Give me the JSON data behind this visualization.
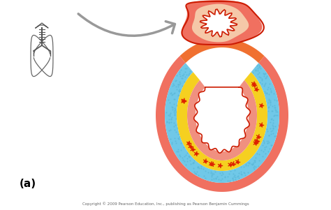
{
  "bg_color": "#ffffff",
  "label_a": "(a)",
  "copyright": "Copyright © 2009 Pearson Education, Inc., publishing as Pearson Benjamin Cummings",
  "arrow_color": "#999999",
  "outer_pink": "#f07060",
  "light_peach": "#f5c8a8",
  "red_border": "#cc1a00",
  "blue_layer": "#70c8e8",
  "yellow_layer": "#f5d020",
  "white_lumen": "#ffffff",
  "salmon_inner": "#f09080",
  "orange_band": "#f07030",
  "top_cap_salmon": "#f07060",
  "top_cap_peach": "#f5c8a8"
}
